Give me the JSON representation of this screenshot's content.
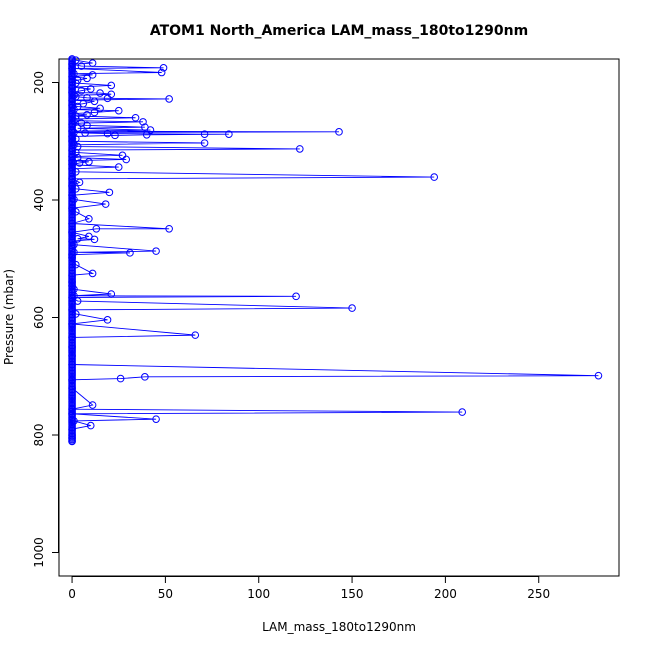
{
  "chart_data": {
    "type": "line",
    "title": "ATOM1 North_America LAM_mass_180to1290nm",
    "xlabel": "LAM_mass_180to1290nm",
    "ylabel": "Pressure (mbar)",
    "xlim": [
      -7,
      293
    ],
    "ylim": [
      1040,
      160
    ],
    "y_reversed": true,
    "x_ticks": [
      0,
      50,
      100,
      150,
      200,
      250
    ],
    "y_ticks": [
      200,
      400,
      600,
      800,
      1000
    ],
    "grid": false,
    "legend": "none",
    "colors": {
      "line": "#0000ff",
      "marker": "#0000ff",
      "axis": "#000000"
    },
    "series": [
      {
        "marker": "open-circle",
        "points": [
          [
            0,
            160
          ],
          [
            2,
            162
          ],
          [
            11,
            167
          ],
          [
            0,
            169
          ],
          [
            5,
            172
          ],
          [
            49,
            175
          ],
          [
            0,
            176
          ],
          [
            48,
            183
          ],
          [
            1,
            185
          ],
          [
            11,
            187
          ],
          [
            0,
            190
          ],
          [
            8,
            193
          ],
          [
            3,
            196
          ],
          [
            0,
            199
          ],
          [
            2,
            201
          ],
          [
            21,
            205
          ],
          [
            0,
            208
          ],
          [
            10,
            211
          ],
          [
            5,
            214
          ],
          [
            0,
            217
          ],
          [
            15,
            218
          ],
          [
            21,
            220
          ],
          [
            1,
            222
          ],
          [
            2,
            224
          ],
          [
            8,
            226
          ],
          [
            19,
            227
          ],
          [
            52,
            228
          ],
          [
            0,
            230
          ],
          [
            12,
            232
          ],
          [
            6,
            236
          ],
          [
            0,
            239
          ],
          [
            3,
            241
          ],
          [
            15,
            244
          ],
          [
            1,
            246
          ],
          [
            25,
            248
          ],
          [
            12,
            251
          ],
          [
            0,
            253
          ],
          [
            8,
            255
          ],
          [
            2,
            257
          ],
          [
            34,
            260
          ],
          [
            2,
            262
          ],
          [
            1,
            265
          ],
          [
            38,
            267
          ],
          [
            5,
            269
          ],
          [
            0,
            271
          ],
          [
            8,
            273
          ],
          [
            39,
            276
          ],
          [
            3,
            278
          ],
          [
            42,
            281
          ],
          [
            0,
            283
          ],
          [
            143,
            284
          ],
          [
            1,
            285
          ],
          [
            7,
            286
          ],
          [
            19,
            287
          ],
          [
            71,
            288
          ],
          [
            84,
            288
          ],
          [
            40,
            289
          ],
          [
            23,
            290
          ],
          [
            0,
            292
          ],
          [
            2,
            296
          ],
          [
            0,
            300
          ],
          [
            71,
            303
          ],
          [
            1,
            306
          ],
          [
            3,
            309
          ],
          [
            122,
            313
          ],
          [
            0,
            315
          ],
          [
            2,
            319
          ],
          [
            27,
            324
          ],
          [
            0,
            326
          ],
          [
            3,
            328
          ],
          [
            29,
            331
          ],
          [
            0,
            333
          ],
          [
            9,
            335
          ],
          [
            4,
            337
          ],
          [
            0,
            340
          ],
          [
            25,
            344
          ],
          [
            0,
            347
          ],
          [
            2,
            352
          ],
          [
            194,
            361
          ],
          [
            0,
            364
          ],
          [
            4,
            370
          ],
          [
            0,
            376
          ],
          [
            2,
            381
          ],
          [
            20,
            387
          ],
          [
            0,
            392
          ],
          [
            1,
            399
          ],
          [
            18,
            407
          ],
          [
            0,
            414
          ],
          [
            2,
            420
          ],
          [
            9,
            432
          ],
          [
            0,
            440
          ],
          [
            52,
            449
          ],
          [
            13,
            449
          ],
          [
            0,
            455
          ],
          [
            9,
            462
          ],
          [
            3,
            466
          ],
          [
            12,
            467
          ],
          [
            0,
            470
          ],
          [
            1,
            476
          ],
          [
            45,
            487
          ],
          [
            1,
            489
          ],
          [
            31,
            490
          ],
          [
            0,
            493
          ],
          [
            0,
            498
          ],
          [
            2,
            510
          ],
          [
            11,
            525
          ],
          [
            0,
            528
          ],
          [
            0,
            540
          ],
          [
            0,
            546
          ],
          [
            1,
            552
          ],
          [
            21,
            560
          ],
          [
            1,
            563
          ],
          [
            120,
            564
          ],
          [
            0,
            566
          ],
          [
            3,
            572
          ],
          [
            150,
            584
          ],
          [
            0,
            587
          ],
          [
            2,
            594
          ],
          [
            19,
            604
          ],
          [
            0,
            611
          ],
          [
            66,
            630
          ],
          [
            0,
            634
          ],
          [
            0,
            650
          ],
          [
            0,
            665
          ],
          [
            0,
            680
          ],
          [
            282,
            699
          ],
          [
            39,
            701
          ],
          [
            26,
            704
          ],
          [
            0,
            706
          ],
          [
            0,
            720
          ],
          [
            11,
            749
          ],
          [
            0,
            756
          ],
          [
            209,
            761
          ],
          [
            0,
            764
          ],
          [
            45,
            773
          ],
          [
            1,
            776
          ],
          [
            10,
            784
          ],
          [
            0,
            790
          ],
          [
            0,
            800
          ],
          [
            0,
            805
          ],
          [
            0,
            811
          ]
        ]
      }
    ]
  }
}
